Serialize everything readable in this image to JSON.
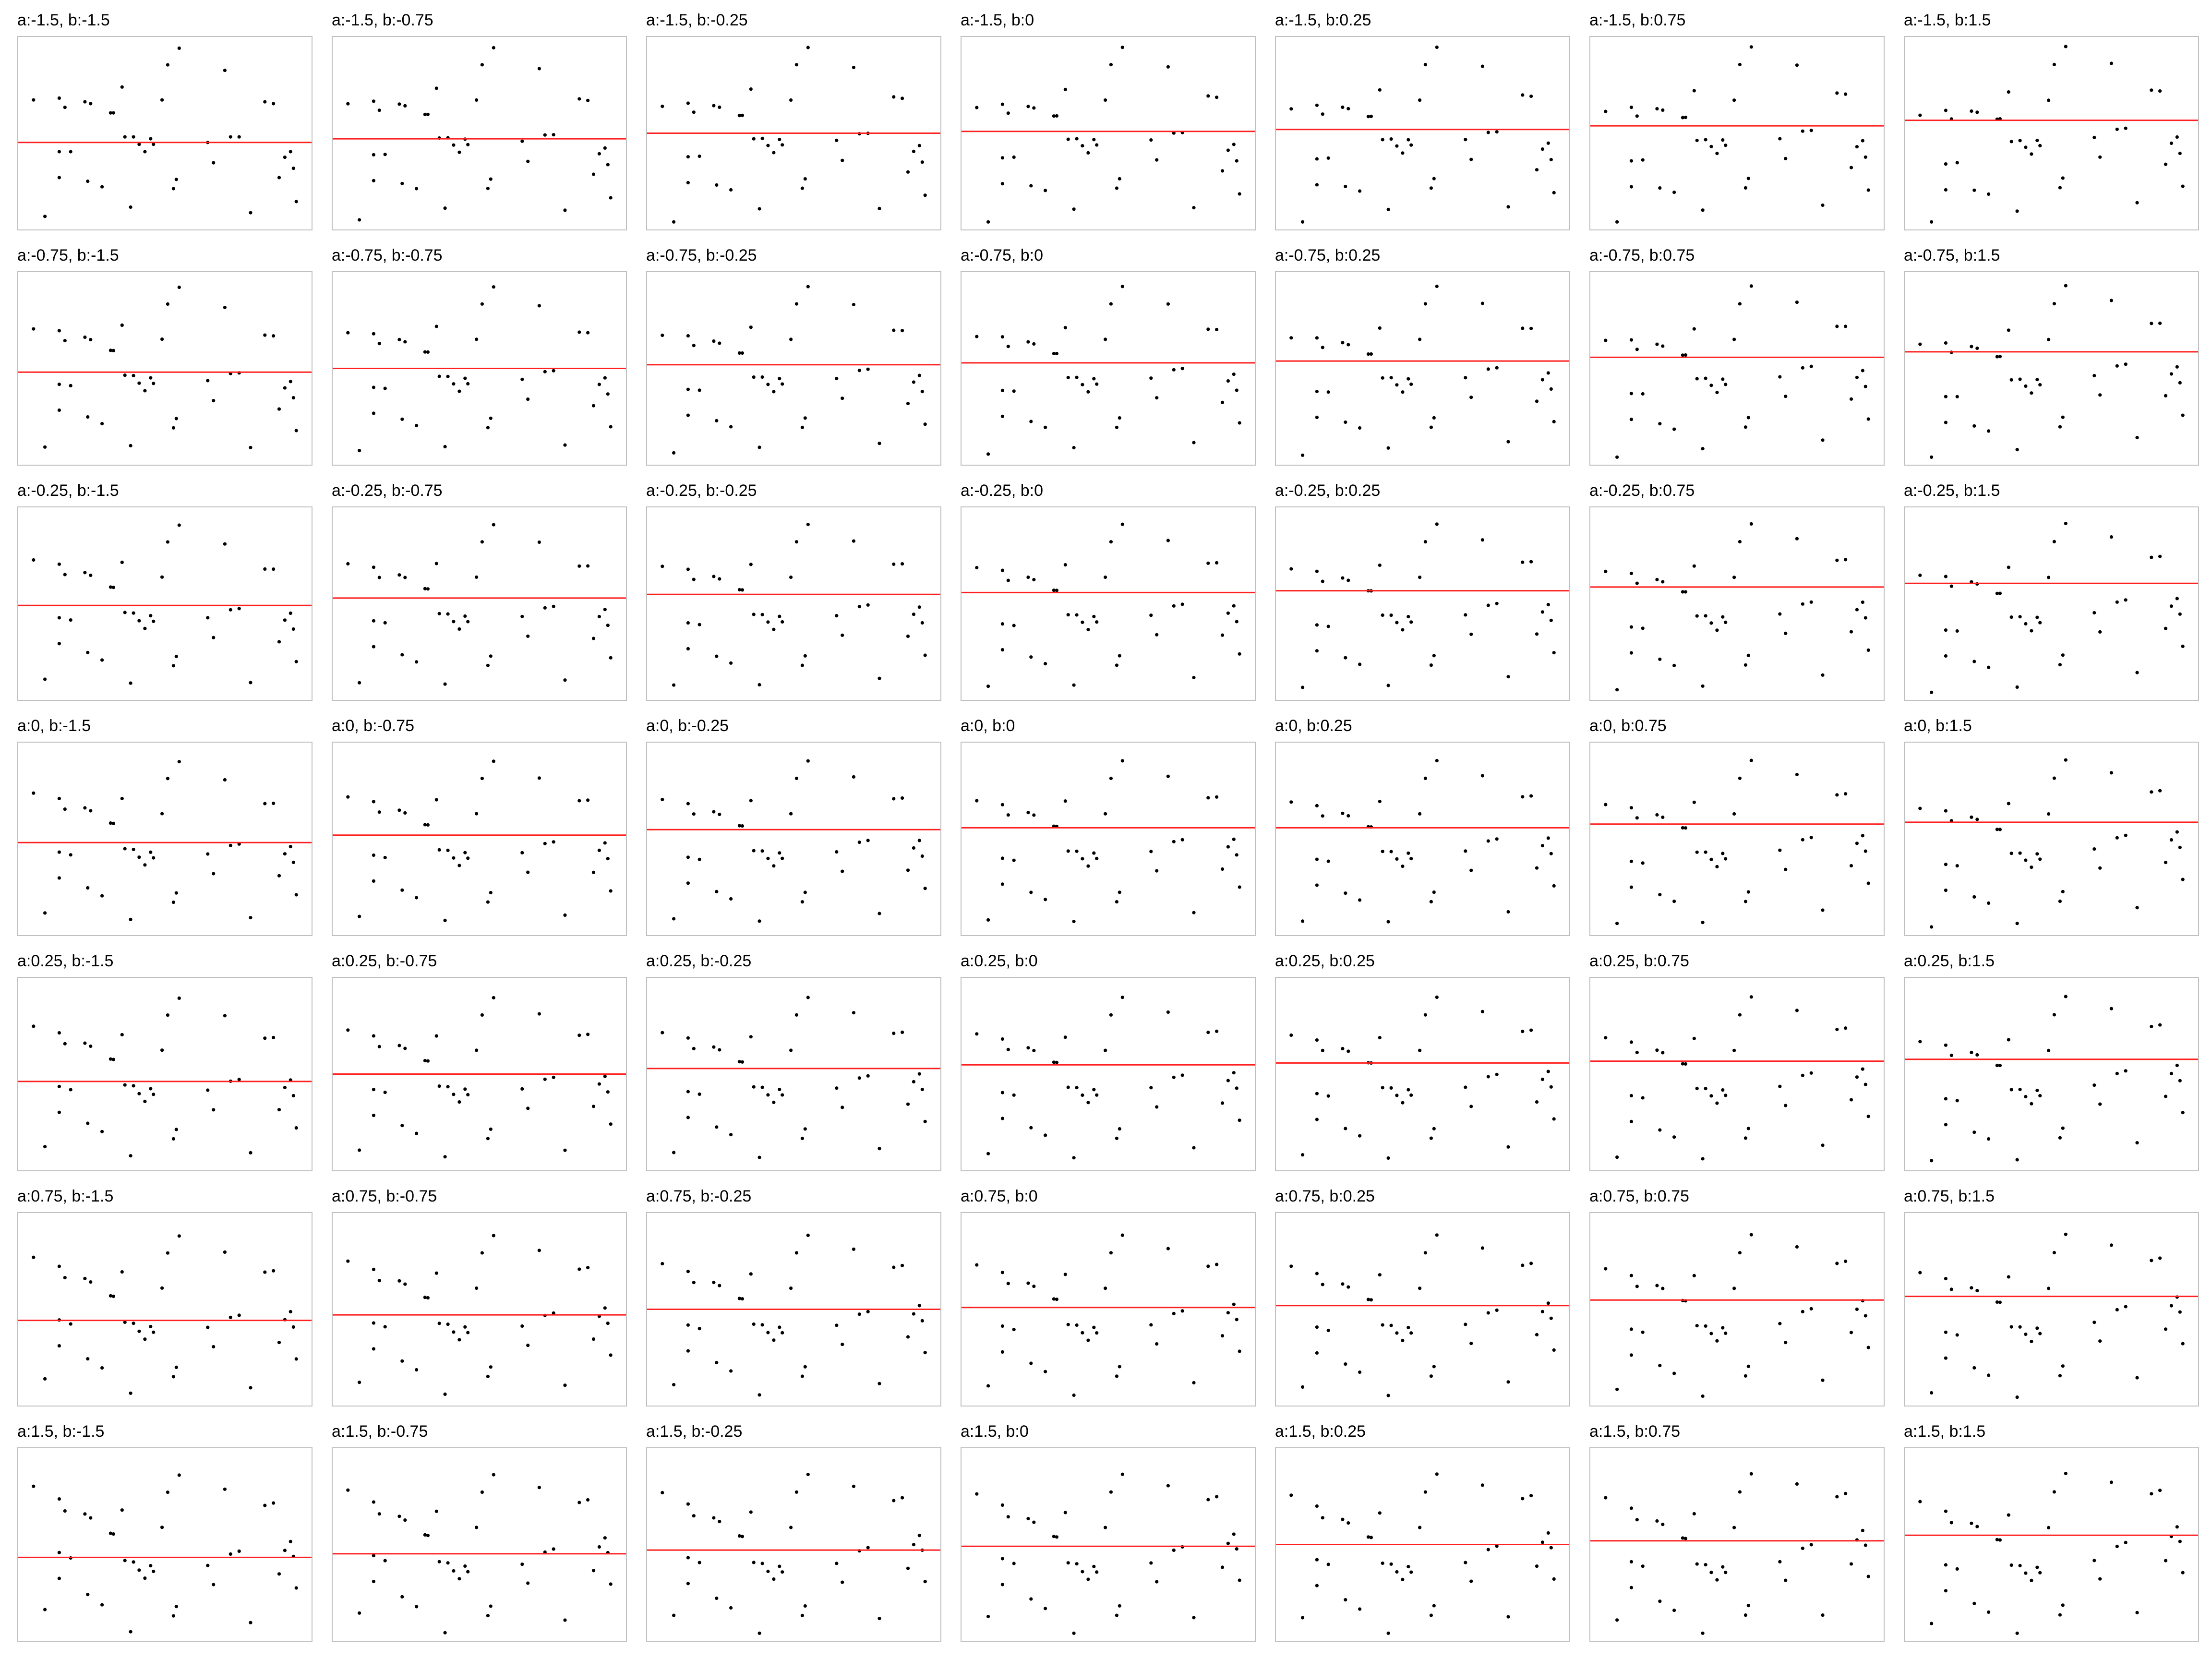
{
  "colors": {
    "line": "#ff2020",
    "point": "#000000",
    "border": "#c0c0c0",
    "background": "#ffffff"
  },
  "chart_data": {
    "type": "scatter",
    "layout": "small-multiples grid, 7 rows (a) x 7 columns (b)",
    "a_values": [
      -1.5,
      -0.75,
      -0.25,
      0,
      0.25,
      0.75,
      1.5
    ],
    "b_values": [
      -1.5,
      -0.75,
      -0.25,
      0,
      0.25,
      0.75,
      1.5
    ],
    "xlim": [
      0,
      1
    ],
    "ylim": [
      0,
      1
    ],
    "axes_visible": false,
    "grid": false,
    "panels": [
      {
        "title": "a:-1.5, b:-1.5",
        "a": -1.5,
        "b": -1.5
      },
      {
        "title": "a:-1.5, b:-0.75",
        "a": -1.5,
        "b": -0.75
      },
      {
        "title": "a:-1.5, b:-0.25",
        "a": -1.5,
        "b": -0.25
      },
      {
        "title": "a:-1.5, b:0",
        "a": -1.5,
        "b": 0
      },
      {
        "title": "a:-1.5, b:0.25",
        "a": -1.5,
        "b": 0.25
      },
      {
        "title": "a:-1.5, b:0.75",
        "a": -1.5,
        "b": 0.75
      },
      {
        "title": "a:-1.5, b:1.5",
        "a": -1.5,
        "b": 1.5
      },
      {
        "title": "a:-0.75, b:-1.5",
        "a": -0.75,
        "b": -1.5
      },
      {
        "title": "a:-0.75, b:-0.75",
        "a": -0.75,
        "b": -0.75
      },
      {
        "title": "a:-0.75, b:-0.25",
        "a": -0.75,
        "b": -0.25
      },
      {
        "title": "a:-0.75, b:0",
        "a": -0.75,
        "b": 0
      },
      {
        "title": "a:-0.75, b:0.25",
        "a": -0.75,
        "b": 0.25
      },
      {
        "title": "a:-0.75, b:0.75",
        "a": -0.75,
        "b": 0.75
      },
      {
        "title": "a:-0.75, b:1.5",
        "a": -0.75,
        "b": 1.5
      },
      {
        "title": "a:-0.25, b:-1.5",
        "a": -0.25,
        "b": -1.5
      },
      {
        "title": "a:-0.25, b:-0.75",
        "a": -0.25,
        "b": -0.75
      },
      {
        "title": "a:-0.25, b:-0.25",
        "a": -0.25,
        "b": -0.25
      },
      {
        "title": "a:-0.25, b:0",
        "a": -0.25,
        "b": 0
      },
      {
        "title": "a:-0.25, b:0.25",
        "a": -0.25,
        "b": 0.25
      },
      {
        "title": "a:-0.25, b:0.75",
        "a": -0.25,
        "b": 0.75
      },
      {
        "title": "a:-0.25, b:1.5",
        "a": -0.25,
        "b": 1.5
      },
      {
        "title": "a:0, b:-1.5",
        "a": 0,
        "b": -1.5
      },
      {
        "title": "a:0, b:-0.75",
        "a": 0,
        "b": -0.75
      },
      {
        "title": "a:0, b:-0.25",
        "a": 0,
        "b": -0.25
      },
      {
        "title": "a:0, b:0",
        "a": 0,
        "b": 0
      },
      {
        "title": "a:0, b:0.25",
        "a": 0,
        "b": 0.25
      },
      {
        "title": "a:0, b:0.75",
        "a": 0,
        "b": 0.75
      },
      {
        "title": "a:0, b:1.5",
        "a": 0,
        "b": 1.5
      },
      {
        "title": "a:0.25, b:-1.5",
        "a": 0.25,
        "b": -1.5
      },
      {
        "title": "a:0.25, b:-0.75",
        "a": 0.25,
        "b": -0.75
      },
      {
        "title": "a:0.25, b:-0.25",
        "a": 0.25,
        "b": -0.25
      },
      {
        "title": "a:0.25, b:0",
        "a": 0.25,
        "b": 0
      },
      {
        "title": "a:0.25, b:0.25",
        "a": 0.25,
        "b": 0.25
      },
      {
        "title": "a:0.25, b:0.75",
        "a": 0.25,
        "b": 0.75
      },
      {
        "title": "a:0.25, b:1.5",
        "a": 0.25,
        "b": 1.5
      },
      {
        "title": "a:0.75, b:-1.5",
        "a": 0.75,
        "b": -1.5
      },
      {
        "title": "a:0.75, b:-0.75",
        "a": 0.75,
        "b": -0.75
      },
      {
        "title": "a:0.75, b:-0.25",
        "a": 0.75,
        "b": -0.25
      },
      {
        "title": "a:0.75, b:0",
        "a": 0.75,
        "b": 0
      },
      {
        "title": "a:0.75, b:0.25",
        "a": 0.75,
        "b": 0.25
      },
      {
        "title": "a:0.75, b:0.75",
        "a": 0.75,
        "b": 0.75
      },
      {
        "title": "a:0.75, b:1.5",
        "a": 0.75,
        "b": 1.5
      },
      {
        "title": "a:1.5, b:-1.5",
        "a": 1.5,
        "b": -1.5
      },
      {
        "title": "a:1.5, b:-0.75",
        "a": 1.5,
        "b": -0.75
      },
      {
        "title": "a:1.5, b:-0.25",
        "a": 1.5,
        "b": -0.25
      },
      {
        "title": "a:1.5, b:0",
        "a": 1.5,
        "b": 0
      },
      {
        "title": "a:1.5, b:0.25",
        "a": 1.5,
        "b": 0.25
      },
      {
        "title": "a:1.5, b:0.75",
        "a": 1.5,
        "b": 0.75
      },
      {
        "title": "a:1.5, b:1.5",
        "a": 1.5,
        "b": 1.5
      }
    ],
    "points_reference_panel": "a:-1.5, b:-1.5",
    "points": [
      {
        "x": 0.04,
        "y": 0.68
      },
      {
        "x": 0.08,
        "y": 0.05
      },
      {
        "x": 0.13,
        "y": 0.69
      },
      {
        "x": 0.15,
        "y": 0.64
      },
      {
        "x": 0.13,
        "y": 0.26
      },
      {
        "x": 0.13,
        "y": 0.4
      },
      {
        "x": 0.17,
        "y": 0.4
      },
      {
        "x": 0.22,
        "y": 0.67
      },
      {
        "x": 0.24,
        "y": 0.66
      },
      {
        "x": 0.23,
        "y": 0.24
      },
      {
        "x": 0.28,
        "y": 0.21
      },
      {
        "x": 0.31,
        "y": 0.61
      },
      {
        "x": 0.32,
        "y": 0.61
      },
      {
        "x": 0.35,
        "y": 0.75
      },
      {
        "x": 0.36,
        "y": 0.48
      },
      {
        "x": 0.38,
        "y": 0.1
      },
      {
        "x": 0.39,
        "y": 0.48
      },
      {
        "x": 0.41,
        "y": 0.44
      },
      {
        "x": 0.43,
        "y": 0.4
      },
      {
        "x": 0.45,
        "y": 0.47
      },
      {
        "x": 0.46,
        "y": 0.44
      },
      {
        "x": 0.49,
        "y": 0.68
      },
      {
        "x": 0.51,
        "y": 0.87
      },
      {
        "x": 0.53,
        "y": 0.2
      },
      {
        "x": 0.54,
        "y": 0.25
      },
      {
        "x": 0.55,
        "y": 0.96
      },
      {
        "x": 0.65,
        "y": 0.45
      },
      {
        "x": 0.67,
        "y": 0.34
      },
      {
        "x": 0.71,
        "y": 0.84
      },
      {
        "x": 0.73,
        "y": 0.48
      },
      {
        "x": 0.76,
        "y": 0.48
      },
      {
        "x": 0.8,
        "y": 0.07
      },
      {
        "x": 0.85,
        "y": 0.67
      },
      {
        "x": 0.88,
        "y": 0.66
      },
      {
        "x": 0.9,
        "y": 0.26
      },
      {
        "x": 0.92,
        "y": 0.37
      },
      {
        "x": 0.94,
        "y": 0.4
      },
      {
        "x": 0.95,
        "y": 0.31
      },
      {
        "x": 0.96,
        "y": 0.13
      }
    ],
    "fit_lines": [
      {
        "panel": "a:-1.5, b:-1.5",
        "y": 0.45
      },
      {
        "panel": "a:-1.5, b:-0.75",
        "y": 0.47
      },
      {
        "panel": "a:-1.5, b:-0.25",
        "y": 0.5
      },
      {
        "panel": "a:-1.5, b:0",
        "y": 0.51
      },
      {
        "panel": "a:-1.5, b:0.25",
        "y": 0.52
      },
      {
        "panel": "a:-1.5, b:0.75",
        "y": 0.54
      },
      {
        "panel": "a:-1.5, b:1.5",
        "y": 0.57
      },
      {
        "panel": "a:-0.75, b:-1.5",
        "y": 0.48
      },
      {
        "panel": "a:-0.75, b:-0.75",
        "y": 0.5
      },
      {
        "panel": "a:-0.75, b:-0.25",
        "y": 0.52
      },
      {
        "panel": "a:-0.75, b:0",
        "y": 0.53
      },
      {
        "panel": "a:-0.75, b:0.25",
        "y": 0.54
      },
      {
        "panel": "a:-0.75, b:0.75",
        "y": 0.56
      },
      {
        "panel": "a:-0.75, b:1.5",
        "y": 0.59
      },
      {
        "panel": "a:-0.25, b:-1.5",
        "y": 0.49
      },
      {
        "panel": "a:-0.25, b:-0.75",
        "y": 0.53
      },
      {
        "panel": "a:-0.25, b:-0.25",
        "y": 0.55
      },
      {
        "panel": "a:-0.25, b:0",
        "y": 0.56
      },
      {
        "panel": "a:-0.25, b:0.25",
        "y": 0.57
      },
      {
        "panel": "a:-0.25, b:0.75",
        "y": 0.59
      },
      {
        "panel": "a:-0.25, b:1.5",
        "y": 0.61
      },
      {
        "panel": "a:0, b:-1.5",
        "y": 0.48
      },
      {
        "panel": "a:0, b:-0.75",
        "y": 0.52
      },
      {
        "panel": "a:0, b:-0.25",
        "y": 0.55
      },
      {
        "panel": "a:0, b:0",
        "y": 0.56
      },
      {
        "panel": "a:0, b:0.25",
        "y": 0.56
      },
      {
        "panel": "a:0, b:0.75",
        "y": 0.58
      },
      {
        "panel": "a:0, b:1.5",
        "y": 0.59
      },
      {
        "panel": "a:0.25, b:-1.5",
        "y": 0.46
      },
      {
        "panel": "a:0.25, b:-0.75",
        "y": 0.5
      },
      {
        "panel": "a:0.25, b:-0.25",
        "y": 0.53
      },
      {
        "panel": "a:0.25, b:0",
        "y": 0.55
      },
      {
        "panel": "a:0.25, b:0.25",
        "y": 0.56
      },
      {
        "panel": "a:0.25, b:0.75",
        "y": 0.57
      },
      {
        "panel": "a:0.25, b:1.5",
        "y": 0.58
      },
      {
        "panel": "a:0.75, b:-1.5",
        "y": 0.44
      },
      {
        "panel": "a:0.75, b:-0.75",
        "y": 0.47
      },
      {
        "panel": "a:0.75, b:-0.25",
        "y": 0.5
      },
      {
        "panel": "a:0.75, b:0",
        "y": 0.51
      },
      {
        "panel": "a:0.75, b:0.25",
        "y": 0.52
      },
      {
        "panel": "a:0.75, b:0.75",
        "y": 0.55
      },
      {
        "panel": "a:0.75, b:1.5",
        "y": 0.57
      },
      {
        "panel": "a:1.5, b:-1.5",
        "y": 0.43
      },
      {
        "panel": "a:1.5, b:-0.75",
        "y": 0.45
      },
      {
        "panel": "a:1.5, b:-0.25",
        "y": 0.47
      },
      {
        "panel": "a:1.5, b:0",
        "y": 0.49
      },
      {
        "panel": "a:1.5, b:0.25",
        "y": 0.5
      },
      {
        "panel": "a:1.5, b:0.75",
        "y": 0.52
      },
      {
        "panel": "a:1.5, b:1.5",
        "y": 0.55
      }
    ]
  }
}
